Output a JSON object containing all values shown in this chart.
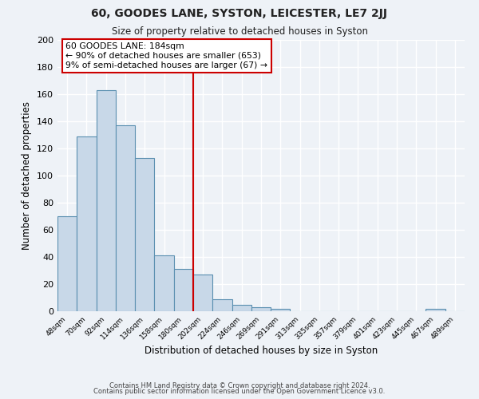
{
  "title": "60, GOODES LANE, SYSTON, LEICESTER, LE7 2JJ",
  "subtitle": "Size of property relative to detached houses in Syston",
  "xlabel": "Distribution of detached houses by size in Syston",
  "ylabel": "Number of detached properties",
  "bar_labels": [
    "48sqm",
    "70sqm",
    "92sqm",
    "114sqm",
    "136sqm",
    "158sqm",
    "180sqm",
    "202sqm",
    "224sqm",
    "246sqm",
    "269sqm",
    "291sqm",
    "313sqm",
    "335sqm",
    "357sqm",
    "379sqm",
    "401sqm",
    "423sqm",
    "445sqm",
    "467sqm",
    "489sqm"
  ],
  "bar_heights": [
    70,
    129,
    163,
    137,
    113,
    41,
    31,
    27,
    9,
    5,
    3,
    2,
    0,
    0,
    0,
    0,
    0,
    0,
    0,
    2,
    0
  ],
  "bar_color": "#c8d8e8",
  "bar_edge_color": "#5a8fb0",
  "vline_x_index": 6,
  "vline_color": "#cc0000",
  "annotation_line1": "60 GOODES LANE: 184sqm",
  "annotation_line2": "← 90% of detached houses are smaller (653)",
  "annotation_line3": "9% of semi-detached houses are larger (67) →",
  "annotation_box_color": "#ffffff",
  "annotation_box_edge_color": "#cc0000",
  "ylim": [
    0,
    200
  ],
  "yticks": [
    0,
    20,
    40,
    60,
    80,
    100,
    120,
    140,
    160,
    180,
    200
  ],
  "background_color": "#eef2f7",
  "grid_color": "#ffffff",
  "footer_line1": "Contains HM Land Registry data © Crown copyright and database right 2024.",
  "footer_line2": "Contains public sector information licensed under the Open Government Licence v3.0."
}
